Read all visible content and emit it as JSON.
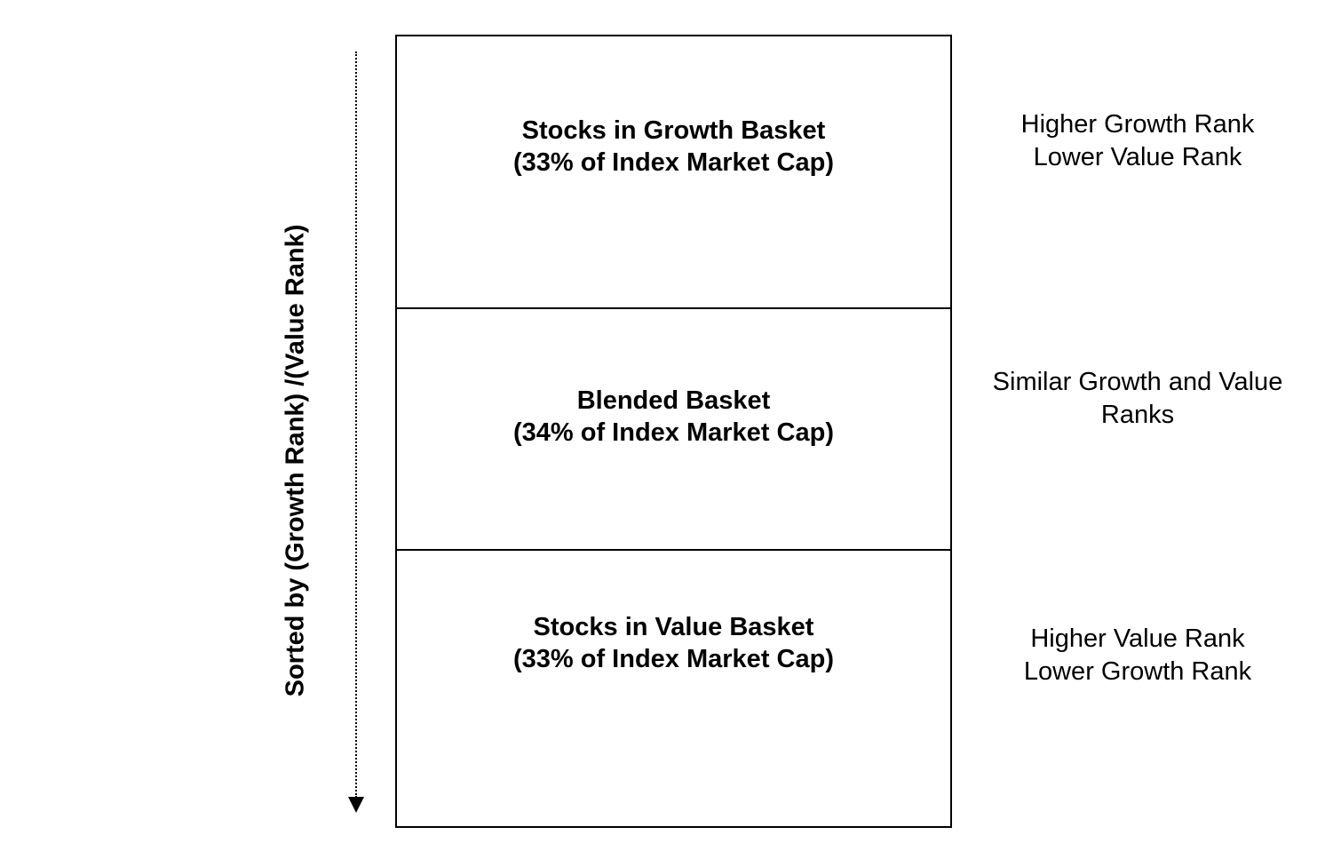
{
  "axis": {
    "label": "Sorted by (Growth Rank) /(Value Rank)"
  },
  "baskets": [
    {
      "title": "Stocks in Growth Basket",
      "share": "(33% of Index Market Cap)"
    },
    {
      "title": "Blended Basket",
      "share": "(34% of Index Market Cap)"
    },
    {
      "title": "Stocks in Value Basket",
      "share": "(33% of Index Market Cap)"
    }
  ],
  "notes": [
    {
      "line1": "Higher Growth Rank",
      "line2": "Lower Value Rank"
    },
    {
      "line1": "Similar Growth and Value",
      "line2": "Ranks"
    },
    {
      "line1": "Higher Value Rank",
      "line2": "Lower Growth Rank"
    }
  ],
  "colors": {
    "line": "#000000",
    "background": "#ffffff"
  }
}
